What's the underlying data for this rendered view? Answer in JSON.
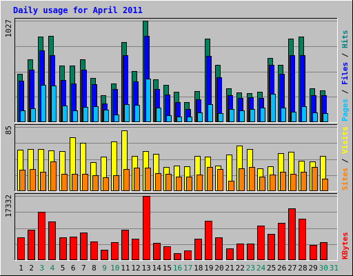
{
  "chart_data": {
    "type": "bar",
    "title": "Daily usage for April 2011",
    "days": [
      "1",
      "2",
      "3",
      "4",
      "5",
      "6",
      "7",
      "8",
      "9",
      "10",
      "11",
      "12",
      "13",
      "14",
      "15",
      "16",
      "17",
      "18",
      "19",
      "20",
      "21",
      "22",
      "23",
      "24",
      "25",
      "26",
      "27",
      "28",
      "29",
      "30",
      "31"
    ],
    "day_colors": [
      "#000000",
      "#000000",
      "#00805c",
      "#00805c",
      "#000000",
      "#000000",
      "#000000",
      "#000000",
      "#00805c",
      "#00805c",
      "#000000",
      "#000000",
      "#000000",
      "#000000",
      "#000000",
      "#00805c",
      "#00805c",
      "#000000",
      "#000000",
      "#000000",
      "#000000",
      "#000000",
      "#00805c",
      "#00805c",
      "#000000",
      "#000000",
      "#000000",
      "#000000",
      "#000000",
      "#00805c",
      "#00805c"
    ],
    "panels": [
      {
        "ymax_label": "1027",
        "ymax": 1027,
        "legend": [
          {
            "text": "Pages",
            "color": "#00c0ff"
          },
          {
            "text": " / ",
            "color": "#000000"
          },
          {
            "text": "Files",
            "color": "#0000ff"
          },
          {
            "text": " / ",
            "color": "#000000"
          },
          {
            "text": "Hits",
            "color": "#008080"
          }
        ],
        "series": [
          {
            "name": "Hits",
            "color": "#00805c",
            "values": [
              486,
              634,
              867,
              876,
              576,
              576,
              639,
              445,
              271,
              392,
              813,
              514,
              1027,
              430,
              379,
              310,
              205,
              311,
              847,
              583,
              339,
              303,
              296,
              305,
              653,
              578,
              848,
              864,
              344,
              318,
              null
            ]
          },
          {
            "name": "Files",
            "color": "#0000ff",
            "values": [
              420,
              534,
              730,
              676,
              424,
              390,
              530,
              386,
              192,
              332,
              675,
              415,
              871,
              335,
              279,
              204,
              136,
              231,
              671,
              453,
              269,
              242,
              249,
              248,
              582,
              488,
              675,
              675,
              274,
              273,
              null
            ]
          },
          {
            "name": "Pages",
            "color": "#00c0ff",
            "values": [
              120,
              141,
              374,
              369,
              166,
              120,
              154,
              164,
              125,
              74,
              185,
              174,
              441,
              149,
              68,
              58,
              59,
              96,
              182,
              94,
              133,
              121,
              130,
              149,
              288,
              149,
              108,
              160,
              100,
              91,
              null
            ]
          }
        ]
      },
      {
        "ymax_label": "85",
        "ymax": 85,
        "legend": [
          {
            "text": "Sites",
            "color": "#ff8000"
          },
          {
            "text": " / ",
            "color": "#000000"
          },
          {
            "text": "Visits",
            "color": "#ffff00"
          }
        ],
        "series": [
          {
            "name": "Visits",
            "color": "#ffff00",
            "values": [
              55,
              56,
              56,
              54,
              53,
              71,
              64,
              38,
              46,
              66,
              80,
              47,
              53,
              49,
              32,
              34,
              33,
              47,
              46,
              34,
              48,
              60,
              56,
              30,
              33,
              50,
              52,
              40,
              39,
              47,
              null
            ]
          },
          {
            "name": "Sites",
            "color": "#ff8000",
            "values": [
              28,
              29,
              26,
              39,
              23,
              23,
              23,
              21,
              18,
              21,
              29,
              31,
              31,
              24,
              23,
              19,
              19,
              22,
              32,
              29,
              14,
              30,
              32,
              19,
              22,
              26,
              23,
              26,
              32,
              16,
              null
            ]
          }
        ]
      },
      {
        "ymax_label": "17332",
        "ymax": 17332,
        "legend": [
          {
            "text": "KBytes",
            "color": "#ff0000"
          }
        ],
        "series": [
          {
            "name": "KBytes",
            "color": "#ff0000",
            "values": [
              6100,
              8200,
              13100,
              10500,
              6100,
              6300,
              7500,
              5000,
              2800,
              4800,
              8200,
              5800,
              17332,
              4600,
              3700,
              1900,
              2700,
              5800,
              10600,
              6200,
              3200,
              4400,
              4500,
              9400,
              7100,
              10000,
              13900,
              11100,
              4100,
              4800,
              null
            ]
          }
        ]
      }
    ]
  }
}
